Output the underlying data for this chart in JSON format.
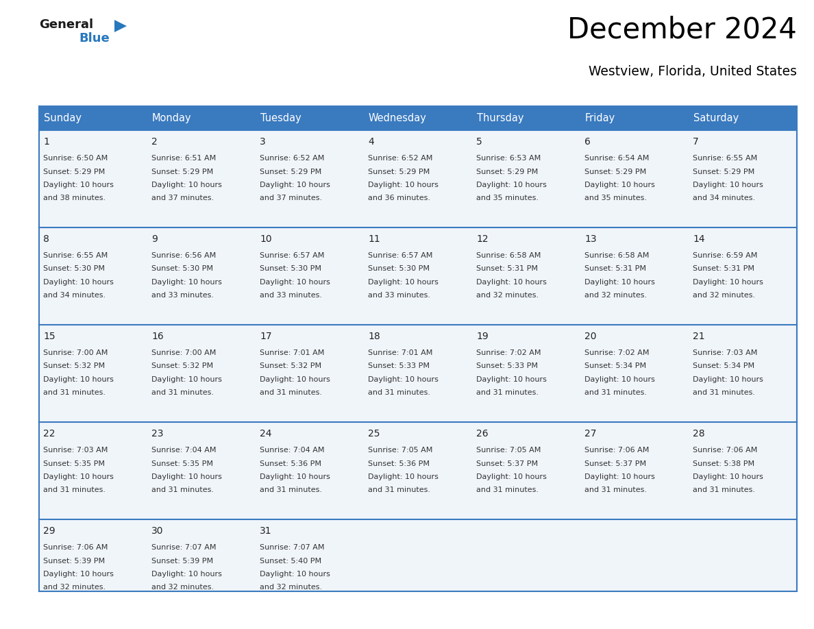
{
  "title": "December 2024",
  "subtitle": "Westview, Florida, United States",
  "header_bg_color": "#3a7abf",
  "header_text_color": "#ffffff",
  "cell_bg_color": "#f0f5fa",
  "border_color": "#3a7abf",
  "text_color": "#333333",
  "day_number_color": "#222222",
  "day_headers": [
    "Sunday",
    "Monday",
    "Tuesday",
    "Wednesday",
    "Thursday",
    "Friday",
    "Saturday"
  ],
  "calendar_data": [
    [
      {
        "day": 1,
        "sunrise": "6:50 AM",
        "sunset": "5:29 PM",
        "daylight_hours": 10,
        "daylight_minutes": 38
      },
      {
        "day": 2,
        "sunrise": "6:51 AM",
        "sunset": "5:29 PM",
        "daylight_hours": 10,
        "daylight_minutes": 37
      },
      {
        "day": 3,
        "sunrise": "6:52 AM",
        "sunset": "5:29 PM",
        "daylight_hours": 10,
        "daylight_minutes": 37
      },
      {
        "day": 4,
        "sunrise": "6:52 AM",
        "sunset": "5:29 PM",
        "daylight_hours": 10,
        "daylight_minutes": 36
      },
      {
        "day": 5,
        "sunrise": "6:53 AM",
        "sunset": "5:29 PM",
        "daylight_hours": 10,
        "daylight_minutes": 35
      },
      {
        "day": 6,
        "sunrise": "6:54 AM",
        "sunset": "5:29 PM",
        "daylight_hours": 10,
        "daylight_minutes": 35
      },
      {
        "day": 7,
        "sunrise": "6:55 AM",
        "sunset": "5:29 PM",
        "daylight_hours": 10,
        "daylight_minutes": 34
      }
    ],
    [
      {
        "day": 8,
        "sunrise": "6:55 AM",
        "sunset": "5:30 PM",
        "daylight_hours": 10,
        "daylight_minutes": 34
      },
      {
        "day": 9,
        "sunrise": "6:56 AM",
        "sunset": "5:30 PM",
        "daylight_hours": 10,
        "daylight_minutes": 33
      },
      {
        "day": 10,
        "sunrise": "6:57 AM",
        "sunset": "5:30 PM",
        "daylight_hours": 10,
        "daylight_minutes": 33
      },
      {
        "day": 11,
        "sunrise": "6:57 AM",
        "sunset": "5:30 PM",
        "daylight_hours": 10,
        "daylight_minutes": 33
      },
      {
        "day": 12,
        "sunrise": "6:58 AM",
        "sunset": "5:31 PM",
        "daylight_hours": 10,
        "daylight_minutes": 32
      },
      {
        "day": 13,
        "sunrise": "6:58 AM",
        "sunset": "5:31 PM",
        "daylight_hours": 10,
        "daylight_minutes": 32
      },
      {
        "day": 14,
        "sunrise": "6:59 AM",
        "sunset": "5:31 PM",
        "daylight_hours": 10,
        "daylight_minutes": 32
      }
    ],
    [
      {
        "day": 15,
        "sunrise": "7:00 AM",
        "sunset": "5:32 PM",
        "daylight_hours": 10,
        "daylight_minutes": 31
      },
      {
        "day": 16,
        "sunrise": "7:00 AM",
        "sunset": "5:32 PM",
        "daylight_hours": 10,
        "daylight_minutes": 31
      },
      {
        "day": 17,
        "sunrise": "7:01 AM",
        "sunset": "5:32 PM",
        "daylight_hours": 10,
        "daylight_minutes": 31
      },
      {
        "day": 18,
        "sunrise": "7:01 AM",
        "sunset": "5:33 PM",
        "daylight_hours": 10,
        "daylight_minutes": 31
      },
      {
        "day": 19,
        "sunrise": "7:02 AM",
        "sunset": "5:33 PM",
        "daylight_hours": 10,
        "daylight_minutes": 31
      },
      {
        "day": 20,
        "sunrise": "7:02 AM",
        "sunset": "5:34 PM",
        "daylight_hours": 10,
        "daylight_minutes": 31
      },
      {
        "day": 21,
        "sunrise": "7:03 AM",
        "sunset": "5:34 PM",
        "daylight_hours": 10,
        "daylight_minutes": 31
      }
    ],
    [
      {
        "day": 22,
        "sunrise": "7:03 AM",
        "sunset": "5:35 PM",
        "daylight_hours": 10,
        "daylight_minutes": 31
      },
      {
        "day": 23,
        "sunrise": "7:04 AM",
        "sunset": "5:35 PM",
        "daylight_hours": 10,
        "daylight_minutes": 31
      },
      {
        "day": 24,
        "sunrise": "7:04 AM",
        "sunset": "5:36 PM",
        "daylight_hours": 10,
        "daylight_minutes": 31
      },
      {
        "day": 25,
        "sunrise": "7:05 AM",
        "sunset": "5:36 PM",
        "daylight_hours": 10,
        "daylight_minutes": 31
      },
      {
        "day": 26,
        "sunrise": "7:05 AM",
        "sunset": "5:37 PM",
        "daylight_hours": 10,
        "daylight_minutes": 31
      },
      {
        "day": 27,
        "sunrise": "7:06 AM",
        "sunset": "5:37 PM",
        "daylight_hours": 10,
        "daylight_minutes": 31
      },
      {
        "day": 28,
        "sunrise": "7:06 AM",
        "sunset": "5:38 PM",
        "daylight_hours": 10,
        "daylight_minutes": 31
      }
    ],
    [
      {
        "day": 29,
        "sunrise": "7:06 AM",
        "sunset": "5:39 PM",
        "daylight_hours": 10,
        "daylight_minutes": 32
      },
      {
        "day": 30,
        "sunrise": "7:07 AM",
        "sunset": "5:39 PM",
        "daylight_hours": 10,
        "daylight_minutes": 32
      },
      {
        "day": 31,
        "sunrise": "7:07 AM",
        "sunset": "5:40 PM",
        "daylight_hours": 10,
        "daylight_minutes": 32
      },
      null,
      null,
      null,
      null
    ]
  ],
  "logo_color_general": "#1a1a1a",
  "logo_color_blue": "#2878be",
  "logo_triangle_color": "#2878be",
  "fig_width": 11.88,
  "fig_height": 9.18,
  "dpi": 100
}
